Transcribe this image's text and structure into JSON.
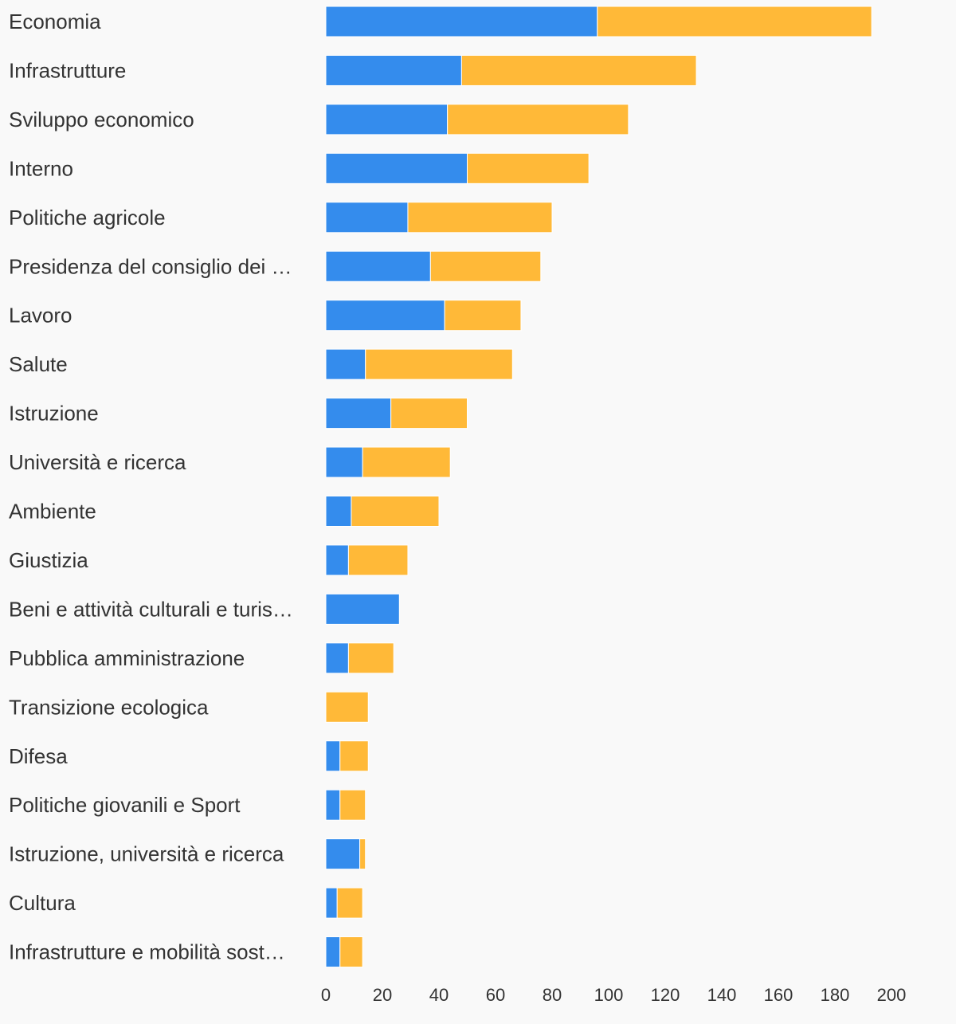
{
  "chart_data": {
    "type": "bar",
    "orientation": "horizontal",
    "stacked": true,
    "categories": [
      "Economia",
      "Infrastrutture",
      "Sviluppo economico",
      "Interno",
      "Politiche agricole",
      "Presidenza del consiglio dei …",
      "Lavoro",
      "Salute",
      "Istruzione",
      "Università e ricerca",
      "Ambiente",
      "Giustizia",
      "Beni e attività culturali e turis…",
      "Pubblica amministrazione",
      "Transizione ecologica",
      "Difesa",
      "Politiche giovanili e Sport",
      "Istruzione, università e ricerca",
      "Cultura",
      "Infrastrutture e mobilità sost…"
    ],
    "series": [
      {
        "color": "#348ced",
        "values": [
          96,
          48,
          43,
          50,
          29,
          37,
          42,
          14,
          23,
          13,
          9,
          8,
          26,
          8,
          0,
          5,
          5,
          12,
          4,
          5
        ]
      },
      {
        "color": "#ffb938",
        "values": [
          97,
          83,
          64,
          43,
          51,
          39,
          27,
          52,
          27,
          31,
          31,
          21,
          0,
          16,
          15,
          10,
          9,
          2,
          9,
          8
        ]
      }
    ],
    "xlim": [
      0,
      200
    ],
    "xticks": [
      "0",
      "20",
      "40",
      "60",
      "80",
      "100",
      "120",
      "140",
      "160",
      "180",
      "200"
    ],
    "title": "",
    "xlabel": "",
    "ylabel": "",
    "grid": false,
    "legend": "none"
  }
}
